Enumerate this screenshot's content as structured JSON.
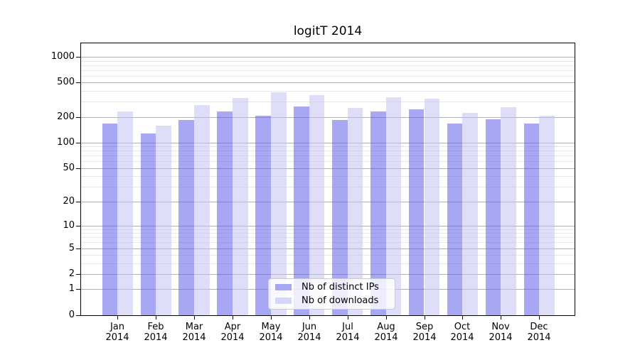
{
  "chart_data": {
    "type": "bar",
    "title": "logitT 2014",
    "categories": [
      "Jan 2014",
      "Feb 2014",
      "Mar 2014",
      "Apr 2014",
      "May 2014",
      "Jun 2014",
      "Jul 2014",
      "Aug 2014",
      "Sep 2014",
      "Oct 2014",
      "Nov 2014",
      "Dec 2014"
    ],
    "series": [
      {
        "name": "Nb of distinct IPs",
        "values": [
          168,
          127,
          185,
          230,
          207,
          265,
          184,
          232,
          246,
          168,
          188,
          167
        ],
        "bar_color": "rgba(94,94,234,0.55)",
        "legend_color": "#a6a6f3"
      },
      {
        "name": "Nb of downloads",
        "values": [
          230,
          159,
          275,
          331,
          384,
          360,
          254,
          341,
          325,
          224,
          257,
          207
        ],
        "bar_color": "rgba(195,195,242,0.55)",
        "legend_color": "#d6d6f8"
      }
    ],
    "y_ticks": [
      0,
      1,
      2,
      5,
      10,
      20,
      50,
      100,
      200,
      500,
      1000
    ],
    "y_minor_ticks": [
      3,
      4,
      6,
      7,
      8,
      9,
      30,
      40,
      60,
      70,
      80,
      90,
      300,
      400,
      600,
      700,
      800,
      900
    ],
    "ylim": [
      0,
      1434
    ],
    "yscale": "log10(value+1)",
    "xlabel": "",
    "ylabel": "",
    "grid": true,
    "legend_position": "lower center",
    "colors": {
      "axis": "#000000",
      "grid_major": "#b0b0b0",
      "grid_minor": "#e7e7e7",
      "background": "#ffffff"
    }
  }
}
